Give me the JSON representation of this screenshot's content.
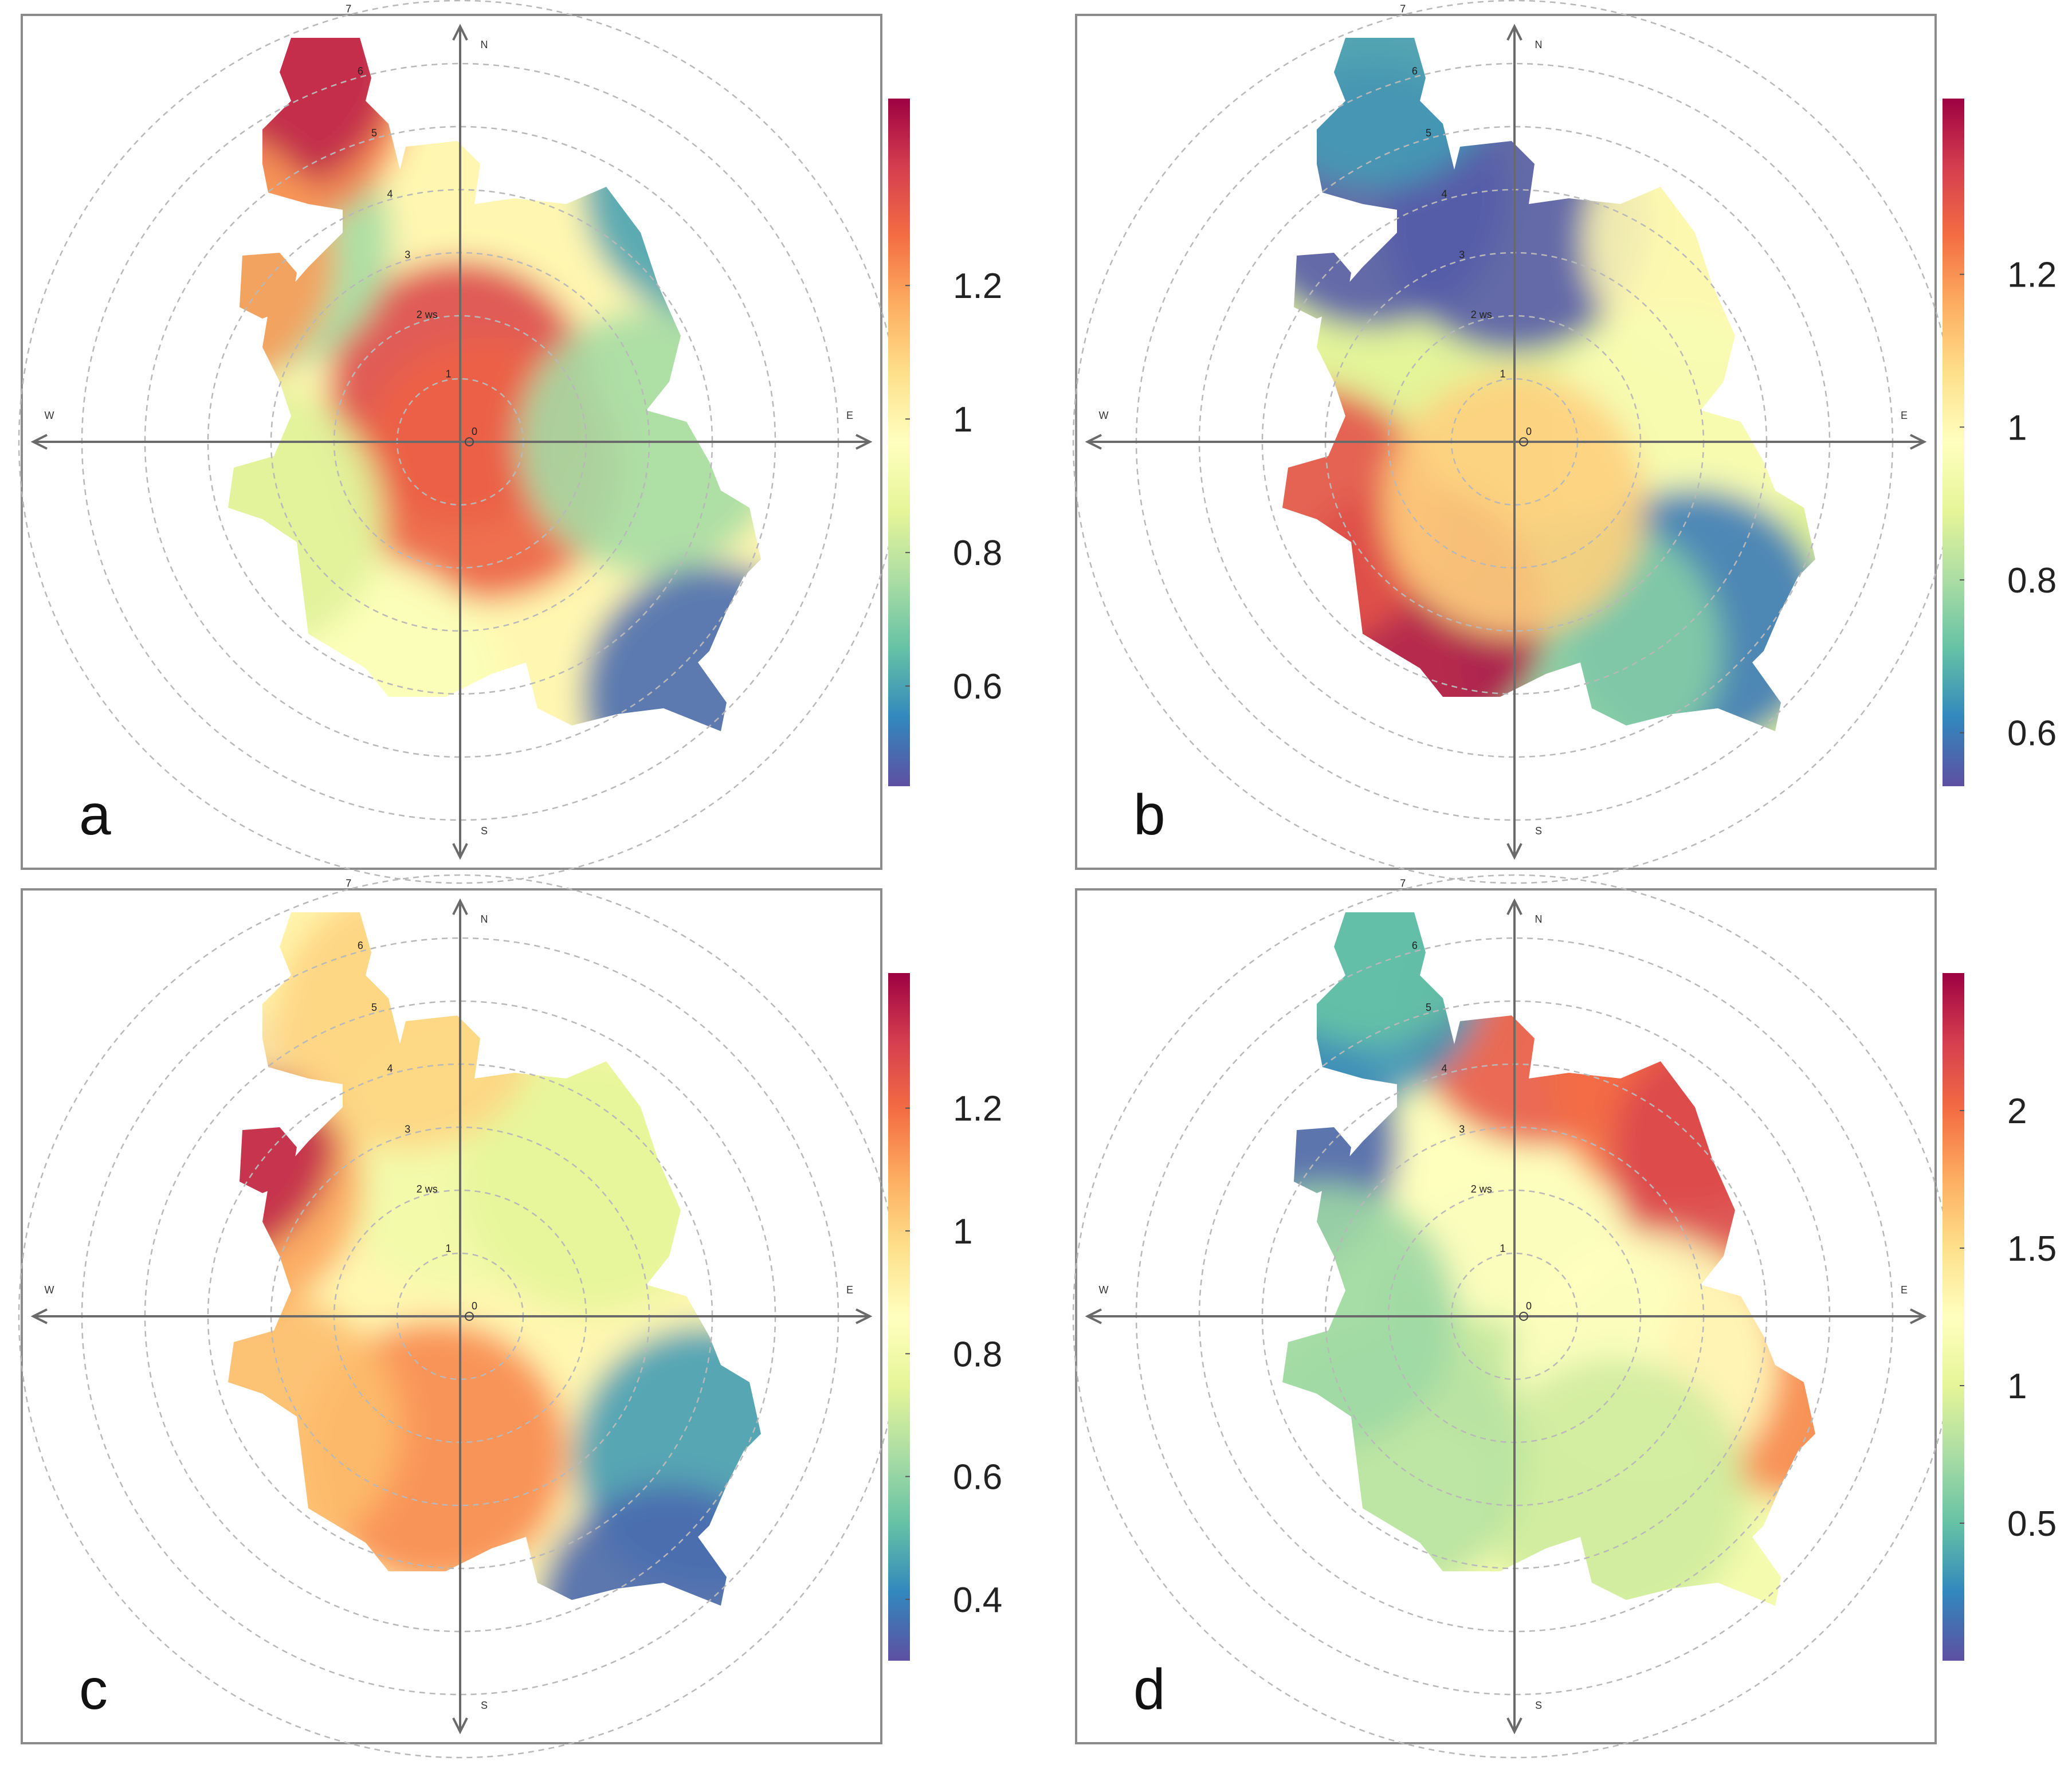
{
  "chart_data": [
    {
      "panel_label": "a",
      "type": "heatmap",
      "subtype": "polar-bivariate",
      "direction_labels": [
        "N",
        "E",
        "S",
        "W"
      ],
      "ring_labels": [
        "1",
        "2 ws",
        "3",
        "4",
        "5",
        "6",
        "7"
      ],
      "center_label": "0",
      "colorbar": {
        "ticks": [
          0.6,
          0.8,
          1,
          1.2
        ],
        "tick_labels": [
          "0.6",
          "0.8",
          "1",
          "1.2"
        ],
        "range": [
          0.45,
          1.48
        ],
        "palette": "Spectral (reversed)"
      },
      "blobs": [
        {
          "dir": 0,
          "r": 0.8,
          "v": 1.35
        },
        {
          "dir": 45,
          "r": 5.7,
          "v": 0.6
        },
        {
          "dir": 135,
          "r": 0.6,
          "v": 1.3
        },
        {
          "dir": 135,
          "r": 5.7,
          "v": 0.5
        },
        {
          "dir": 90,
          "r": 3.0,
          "v": 0.75
        },
        {
          "dir": 200,
          "r": 4.2,
          "v": 0.95
        },
        {
          "dir": 315,
          "r": 4.5,
          "v": 0.75
        },
        {
          "dir": 332,
          "r": 6.2,
          "v": 1.25
        },
        {
          "dir": 333,
          "r": 6.8,
          "v": 1.42
        },
        {
          "dir": 305,
          "r": 5.0,
          "v": 1.2
        },
        {
          "dir": 250,
          "r": 3.5,
          "v": 0.85
        }
      ]
    },
    {
      "panel_label": "b",
      "type": "heatmap",
      "subtype": "polar-bivariate",
      "direction_labels": [
        "N",
        "E",
        "S",
        "W"
      ],
      "ring_labels": [
        "1",
        "2 ws",
        "3",
        "4",
        "5",
        "6",
        "7"
      ],
      "center_label": "0",
      "colorbar": {
        "ticks": [
          0.6,
          0.8,
          1,
          1.2
        ],
        "tick_labels": [
          "0.6",
          "0.8",
          "1",
          "1.2"
        ],
        "range": [
          0.53,
          1.43
        ],
        "palette": "Spectral (reversed)"
      },
      "blobs": [
        {
          "dir": 0,
          "r": 3.5,
          "v": 0.55
        },
        {
          "dir": 330,
          "r": 4.5,
          "v": 0.55
        },
        {
          "dir": 340,
          "r": 6.5,
          "v": 0.65
        },
        {
          "dir": 45,
          "r": 4.5,
          "v": 1.0
        },
        {
          "dir": 90,
          "r": 2.5,
          "v": 0.95
        },
        {
          "dir": 135,
          "r": 4.0,
          "v": 0.6
        },
        {
          "dir": 160,
          "r": 3.5,
          "v": 0.75
        },
        {
          "dir": 210,
          "r": 3.2,
          "v": 1.4
        },
        {
          "dir": 250,
          "r": 3.5,
          "v": 1.3
        },
        {
          "dir": 180,
          "r": 1.0,
          "v": 1.1
        }
      ]
    },
    {
      "panel_label": "c",
      "type": "heatmap",
      "subtype": "polar-bivariate",
      "direction_labels": [
        "N",
        "E",
        "S",
        "W"
      ],
      "ring_labels": [
        "1",
        "2 ws",
        "3",
        "4",
        "5",
        "6",
        "7"
      ],
      "center_label": "0",
      "colorbar": {
        "ticks": [
          0.4,
          0.6,
          0.8,
          1,
          1.2
        ],
        "tick_labels": [
          "0.4",
          "0.6",
          "0.8",
          "1",
          "1.2"
        ],
        "range": [
          0.3,
          1.42
        ],
        "palette": "Spectral (reversed)"
      },
      "blobs": [
        {
          "dir": 0,
          "r": 2.5,
          "v": 0.8
        },
        {
          "dir": 45,
          "r": 3.0,
          "v": 0.75
        },
        {
          "dir": 120,
          "r": 4.5,
          "v": 0.45
        },
        {
          "dir": 145,
          "r": 5.8,
          "v": 0.35
        },
        {
          "dir": 190,
          "r": 2.2,
          "v": 1.15
        },
        {
          "dir": 240,
          "r": 3.5,
          "v": 1.05
        },
        {
          "dir": 300,
          "r": 4.2,
          "v": 1.1
        },
        {
          "dir": 306,
          "r": 5.0,
          "v": 1.35
        },
        {
          "dir": 335,
          "r": 6.5,
          "v": 0.9
        },
        {
          "dir": 350,
          "r": 4.8,
          "v": 1.0
        }
      ]
    },
    {
      "panel_label": "d",
      "type": "heatmap",
      "subtype": "polar-bivariate",
      "direction_labels": [
        "N",
        "E",
        "S",
        "W"
      ],
      "ring_labels": [
        "1",
        "2 ws",
        "3",
        "4",
        "5",
        "6",
        "7"
      ],
      "center_label": "0",
      "colorbar": {
        "ticks": [
          0.5,
          1,
          1.5,
          2
        ],
        "tick_labels": [
          "0.5",
          "1",
          "1.5",
          "2"
        ],
        "range": [
          0.0,
          2.5
        ],
        "palette": "Spectral (reversed)"
      },
      "blobs": [
        {
          "dir": 0,
          "r": 0.0,
          "v": 0.85
        },
        {
          "dir": 0,
          "r": 2.0,
          "v": 1.25
        },
        {
          "dir": 5,
          "r": 4.8,
          "v": 2.1
        },
        {
          "dir": 35,
          "r": 4.6,
          "v": 2.0
        },
        {
          "dir": 55,
          "r": 4.4,
          "v": 2.2
        },
        {
          "dir": 100,
          "r": 4.5,
          "v": 1.9
        },
        {
          "dir": 110,
          "r": 2.2,
          "v": 1.25
        },
        {
          "dir": 150,
          "r": 3.2,
          "v": 0.9
        },
        {
          "dir": 220,
          "r": 3.0,
          "v": 0.8
        },
        {
          "dir": 305,
          "r": 4.8,
          "v": 0.1
        },
        {
          "dir": 335,
          "r": 6.0,
          "v": 0.3
        },
        {
          "dir": 340,
          "r": 6.8,
          "v": 0.5
        },
        {
          "dir": 270,
          "r": 3.0,
          "v": 0.7
        }
      ]
    }
  ]
}
